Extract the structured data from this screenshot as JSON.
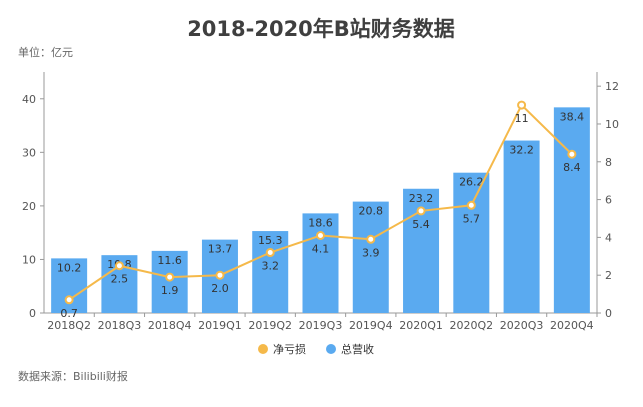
{
  "chart_data": {
    "type": "bar",
    "title": "2018-2020年B站财务数据",
    "unit_label": "单位：亿元",
    "source": "数据来源：Bilibili财报",
    "categories": [
      "2018Q2",
      "2018Q3",
      "2018Q4",
      "2019Q1",
      "2019Q2",
      "2019Q3",
      "2019Q4",
      "2020Q1",
      "2020Q2",
      "2020Q3",
      "2020Q4"
    ],
    "series": [
      {
        "name": "总营收",
        "type": "bar",
        "axis": "left",
        "color": "#5aaaf0",
        "values": [
          10.2,
          10.8,
          11.6,
          13.7,
          15.3,
          18.6,
          20.8,
          23.2,
          26.2,
          32.2,
          38.4
        ],
        "labels": [
          "10.2",
          "10.8",
          "11.6",
          "13.7",
          "15.3",
          "18.6",
          "20.8",
          "23.2",
          "26.2",
          "32.2",
          "38.4"
        ]
      },
      {
        "name": "净亏损",
        "type": "line",
        "axis": "right",
        "color": "#f5b94a",
        "values": [
          0.7,
          2.5,
          1.9,
          2.0,
          3.2,
          4.1,
          3.9,
          5.4,
          5.7,
          11,
          8.4
        ],
        "labels": [
          "0.7",
          "2.5",
          "1.9",
          "2.0",
          "3.2",
          "4.1",
          "3.9",
          "5.4",
          "5.7",
          "11",
          "8.4"
        ]
      }
    ],
    "y_left": {
      "min": 0,
      "max": 45,
      "ticks": [
        "0",
        "10",
        "20",
        "30",
        "40"
      ]
    },
    "y_right": {
      "min": 0,
      "max": 12.75,
      "ticks": [
        "0",
        "2",
        "4",
        "6",
        "8",
        "10",
        "12"
      ]
    },
    "legend": [
      {
        "name": "净亏损",
        "color": "#f5b94a"
      },
      {
        "name": "总营收",
        "color": "#5aaaf0"
      }
    ],
    "legend_position": "bottom",
    "grid": false
  }
}
